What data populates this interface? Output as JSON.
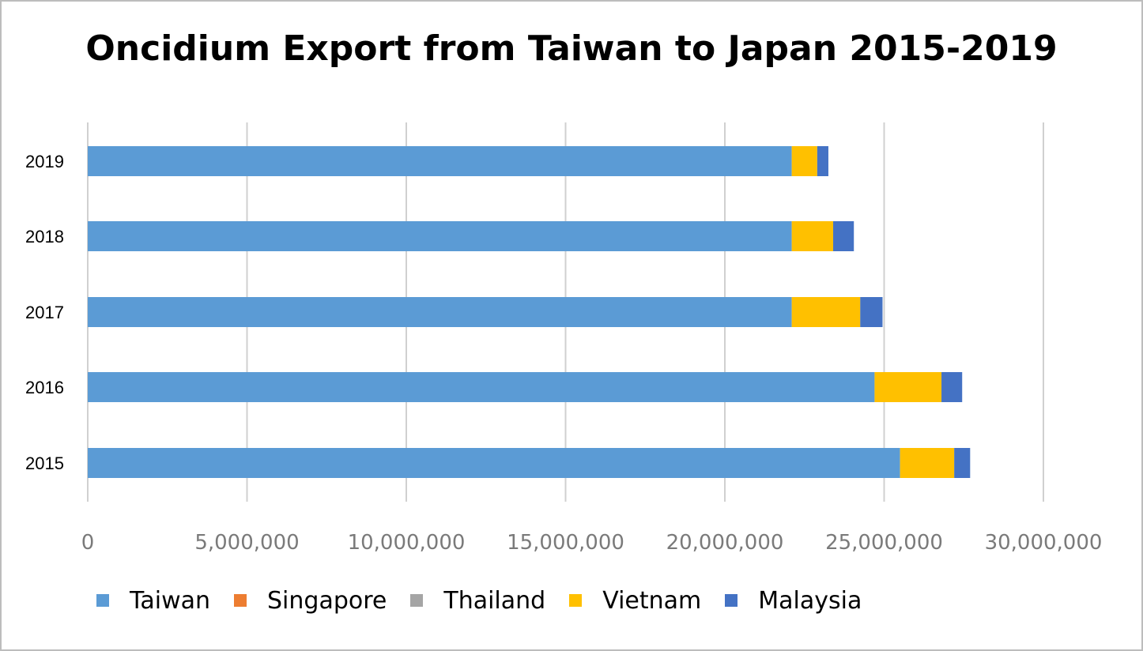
{
  "chart_data": {
    "type": "bar",
    "orientation": "horizontal",
    "stacked": true,
    "title": "Oncidium Export from Taiwan to Japan 2015-2019",
    "categories": [
      "2019",
      "2018",
      "2017",
      "2016",
      "2015"
    ],
    "series": [
      {
        "name": "Taiwan",
        "color": "#5b9bd5",
        "values": [
          22100000,
          22100000,
          22100000,
          24700000,
          25500000
        ]
      },
      {
        "name": "Singapore",
        "color": "#ed7d31",
        "values": [
          0,
          0,
          0,
          0,
          0
        ]
      },
      {
        "name": "Thailand",
        "color": "#a5a5a5",
        "values": [
          0,
          0,
          0,
          0,
          0
        ]
      },
      {
        "name": "Vietnam",
        "color": "#ffc000",
        "values": [
          800000,
          1300000,
          2150000,
          2100000,
          1700000
        ]
      },
      {
        "name": "Malaysia",
        "color": "#4472c4",
        "values": [
          350000,
          650000,
          700000,
          650000,
          500000
        ]
      }
    ],
    "xlim": [
      0,
      30000000
    ],
    "xticks": [
      "0",
      "5,000,000",
      "10,000,000",
      "15,000,000",
      "20,000,000",
      "25,000,000",
      "30,000,000"
    ],
    "xtick_values": [
      0,
      5000000,
      10000000,
      15000000,
      20000000,
      25000000,
      30000000
    ],
    "grid": true,
    "legend_position": "bottom"
  }
}
